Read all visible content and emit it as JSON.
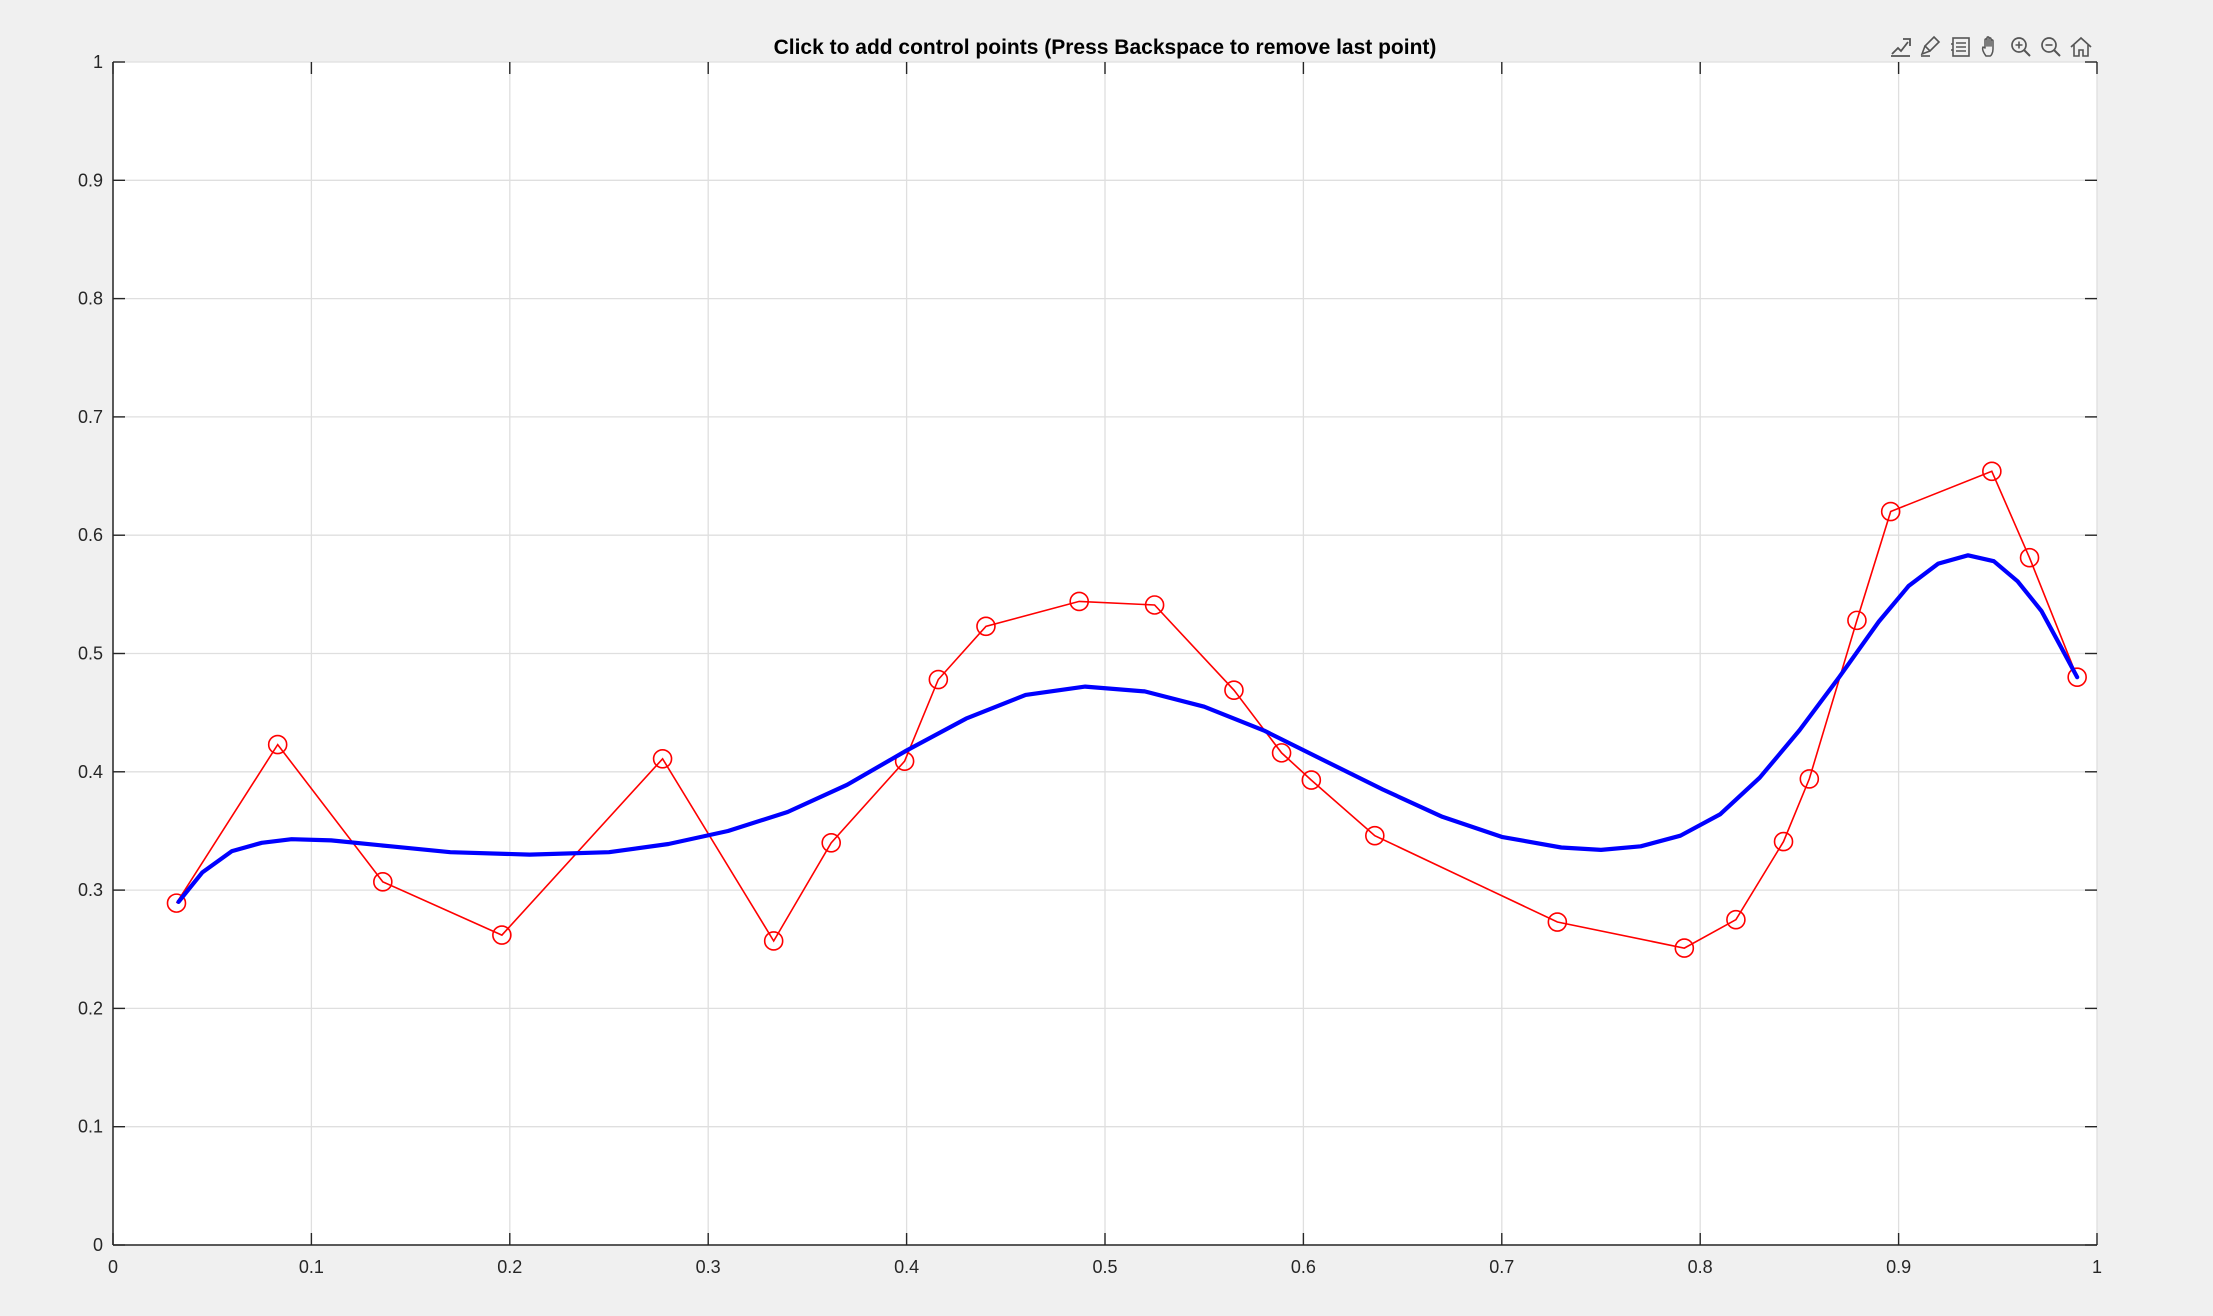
{
  "figure": {
    "title": "Click to add control points (Press Backspace to remove last point)",
    "background": "#f0f0f0",
    "axes_background": "#ffffff"
  },
  "toolbar": {
    "items": [
      {
        "name": "export-icon"
      },
      {
        "name": "brush-icon"
      },
      {
        "name": "data-tips-icon"
      },
      {
        "name": "pan-hand-icon"
      },
      {
        "name": "zoom-in-icon"
      },
      {
        "name": "zoom-out-icon"
      },
      {
        "name": "home-icon"
      }
    ]
  },
  "chart_data": {
    "type": "line",
    "title": "Click to add control points (Press Backspace to remove last point)",
    "xlabel": "",
    "ylabel": "",
    "xlim": [
      0,
      1
    ],
    "ylim": [
      0,
      1
    ],
    "xticks": [
      0,
      0.1,
      0.2,
      0.3,
      0.4,
      0.5,
      0.6,
      0.7,
      0.8,
      0.9,
      1
    ],
    "xtick_labels": [
      "0",
      "0.1",
      "0.2",
      "0.3",
      "0.4",
      "0.5",
      "0.6",
      "0.7",
      "0.8",
      "0.9",
      "1"
    ],
    "yticks": [
      0,
      0.1,
      0.2,
      0.3,
      0.4,
      0.5,
      0.6,
      0.7,
      0.8,
      0.9,
      1
    ],
    "ytick_labels": [
      "0",
      "0.1",
      "0.2",
      "0.3",
      "0.4",
      "0.5",
      "0.6",
      "0.7",
      "0.8",
      "0.9",
      "1"
    ],
    "grid": true,
    "legend": "none",
    "series": [
      {
        "role": "control-polygon",
        "color": "#ff0000",
        "marker": "circle",
        "points": [
          [
            0.032,
            0.289
          ],
          [
            0.083,
            0.423
          ],
          [
            0.136,
            0.307
          ],
          [
            0.196,
            0.262
          ],
          [
            0.277,
            0.411
          ],
          [
            0.333,
            0.257
          ],
          [
            0.362,
            0.34
          ],
          [
            0.399,
            0.409
          ],
          [
            0.416,
            0.478
          ],
          [
            0.44,
            0.523
          ],
          [
            0.487,
            0.544
          ],
          [
            0.525,
            0.541
          ],
          [
            0.565,
            0.469
          ],
          [
            0.589,
            0.416
          ],
          [
            0.604,
            0.393
          ],
          [
            0.636,
            0.346
          ],
          [
            0.728,
            0.273
          ],
          [
            0.792,
            0.251
          ],
          [
            0.818,
            0.275
          ],
          [
            0.842,
            0.341
          ],
          [
            0.855,
            0.394
          ],
          [
            0.879,
            0.528
          ],
          [
            0.896,
            0.62
          ],
          [
            0.947,
            0.654
          ],
          [
            0.966,
            0.581
          ],
          [
            0.99,
            0.48
          ]
        ]
      },
      {
        "role": "curve",
        "color": "#0000ff",
        "points": [
          [
            0.033,
            0.29
          ],
          [
            0.045,
            0.315
          ],
          [
            0.06,
            0.333
          ],
          [
            0.075,
            0.34
          ],
          [
            0.09,
            0.343
          ],
          [
            0.11,
            0.342
          ],
          [
            0.14,
            0.337
          ],
          [
            0.17,
            0.332
          ],
          [
            0.21,
            0.33
          ],
          [
            0.25,
            0.332
          ],
          [
            0.28,
            0.339
          ],
          [
            0.31,
            0.35
          ],
          [
            0.34,
            0.366
          ],
          [
            0.37,
            0.389
          ],
          [
            0.4,
            0.418
          ],
          [
            0.43,
            0.445
          ],
          [
            0.46,
            0.465
          ],
          [
            0.49,
            0.472
          ],
          [
            0.52,
            0.468
          ],
          [
            0.55,
            0.455
          ],
          [
            0.58,
            0.435
          ],
          [
            0.61,
            0.41
          ],
          [
            0.64,
            0.385
          ],
          [
            0.67,
            0.362
          ],
          [
            0.7,
            0.345
          ],
          [
            0.73,
            0.336
          ],
          [
            0.75,
            0.334
          ],
          [
            0.77,
            0.337
          ],
          [
            0.79,
            0.346
          ],
          [
            0.81,
            0.364
          ],
          [
            0.83,
            0.395
          ],
          [
            0.85,
            0.435
          ],
          [
            0.87,
            0.48
          ],
          [
            0.89,
            0.527
          ],
          [
            0.905,
            0.557
          ],
          [
            0.92,
            0.576
          ],
          [
            0.935,
            0.583
          ],
          [
            0.948,
            0.578
          ],
          [
            0.96,
            0.561
          ],
          [
            0.972,
            0.536
          ],
          [
            0.982,
            0.505
          ],
          [
            0.99,
            0.48
          ]
        ]
      }
    ]
  }
}
